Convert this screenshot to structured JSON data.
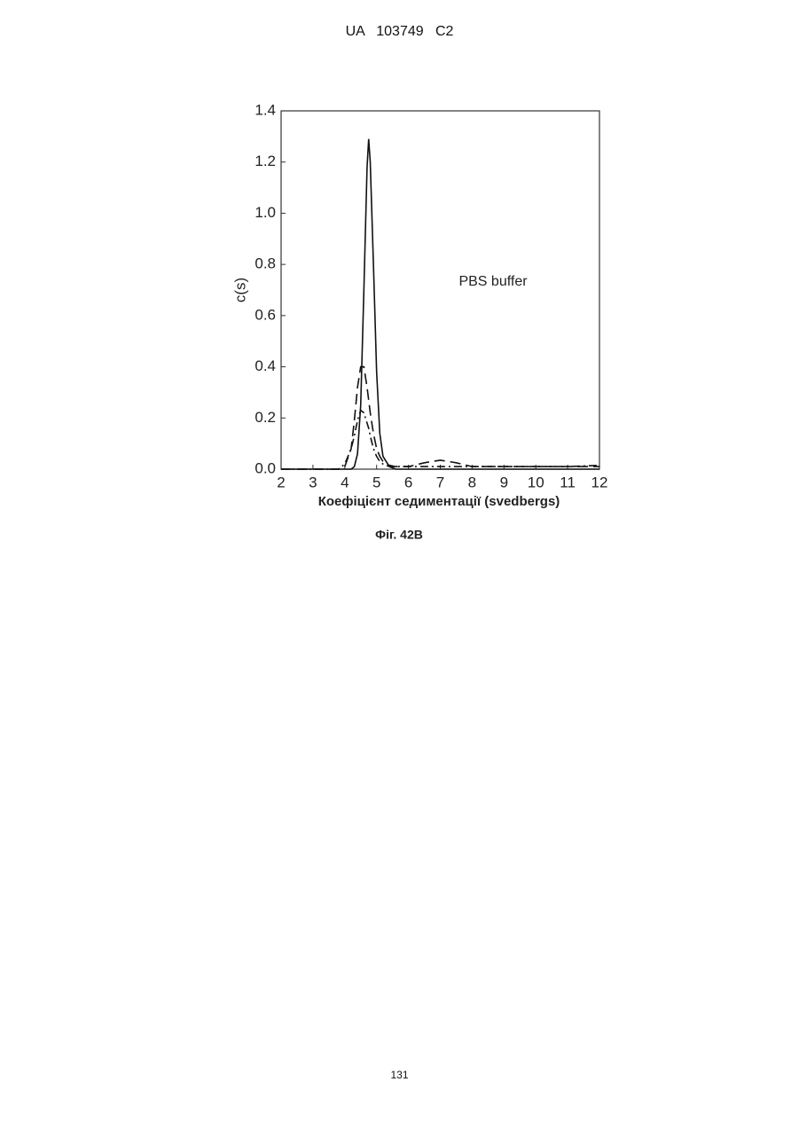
{
  "header": {
    "title": "UA   103749   C2"
  },
  "chart_data": {
    "type": "line",
    "x_label": "Коефіцієнт седиментації (svedbergs)",
    "y_label": "c(s)",
    "annotation": "PBS buffer",
    "x": [
      2,
      3,
      3.8,
      4,
      4.2,
      4.3,
      4.4,
      4.5,
      4.6,
      4.7,
      4.75,
      4.8,
      4.9,
      5.0,
      5.1,
      5.2,
      5.4,
      5.6,
      6,
      6.5,
      7,
      7.5,
      8,
      9,
      10,
      11,
      12
    ],
    "series": [
      {
        "color": "#111111",
        "style": "solid",
        "values": [
          0,
          0,
          0,
          0,
          0,
          0.01,
          0.06,
          0.25,
          0.7,
          1.18,
          1.29,
          1.2,
          0.8,
          0.38,
          0.14,
          0.05,
          0.01,
          0,
          0,
          0,
          0,
          0,
          0,
          0,
          0,
          0,
          0
        ]
      },
      {
        "color": "#111111",
        "style": "dashed",
        "values": [
          0,
          0,
          0,
          0.01,
          0.08,
          0.19,
          0.32,
          0.4,
          0.4,
          0.32,
          0.27,
          0.22,
          0.14,
          0.08,
          0.05,
          0.03,
          0.015,
          0.01,
          0.01,
          0.025,
          0.035,
          0.025,
          0.01,
          0.01,
          0.01,
          0.01,
          0.01
        ]
      },
      {
        "color": "#111111",
        "style": "dashdot",
        "values": [
          0,
          0,
          0,
          0.02,
          0.08,
          0.13,
          0.19,
          0.23,
          0.22,
          0.18,
          0.16,
          0.13,
          0.08,
          0.05,
          0.03,
          0.02,
          0.01,
          0.01,
          0.01,
          0.01,
          0.01,
          0.01,
          0.01,
          0.01,
          0.01,
          0.01,
          0.015
        ]
      }
    ],
    "xlim": [
      2,
      12
    ],
    "xticks": [
      2,
      3,
      4,
      5,
      6,
      7,
      8,
      9,
      10,
      11,
      12
    ],
    "ylim": [
      0,
      1.4
    ],
    "yticks": [
      {
        "value": 0,
        "label": "0.0"
      },
      0.2,
      0.4,
      0.6,
      0.8,
      {
        "value": 1,
        "label": "1.0"
      },
      1.2,
      1.4
    ]
  },
  "caption": "Фіг. 42В",
  "page_number": "131"
}
